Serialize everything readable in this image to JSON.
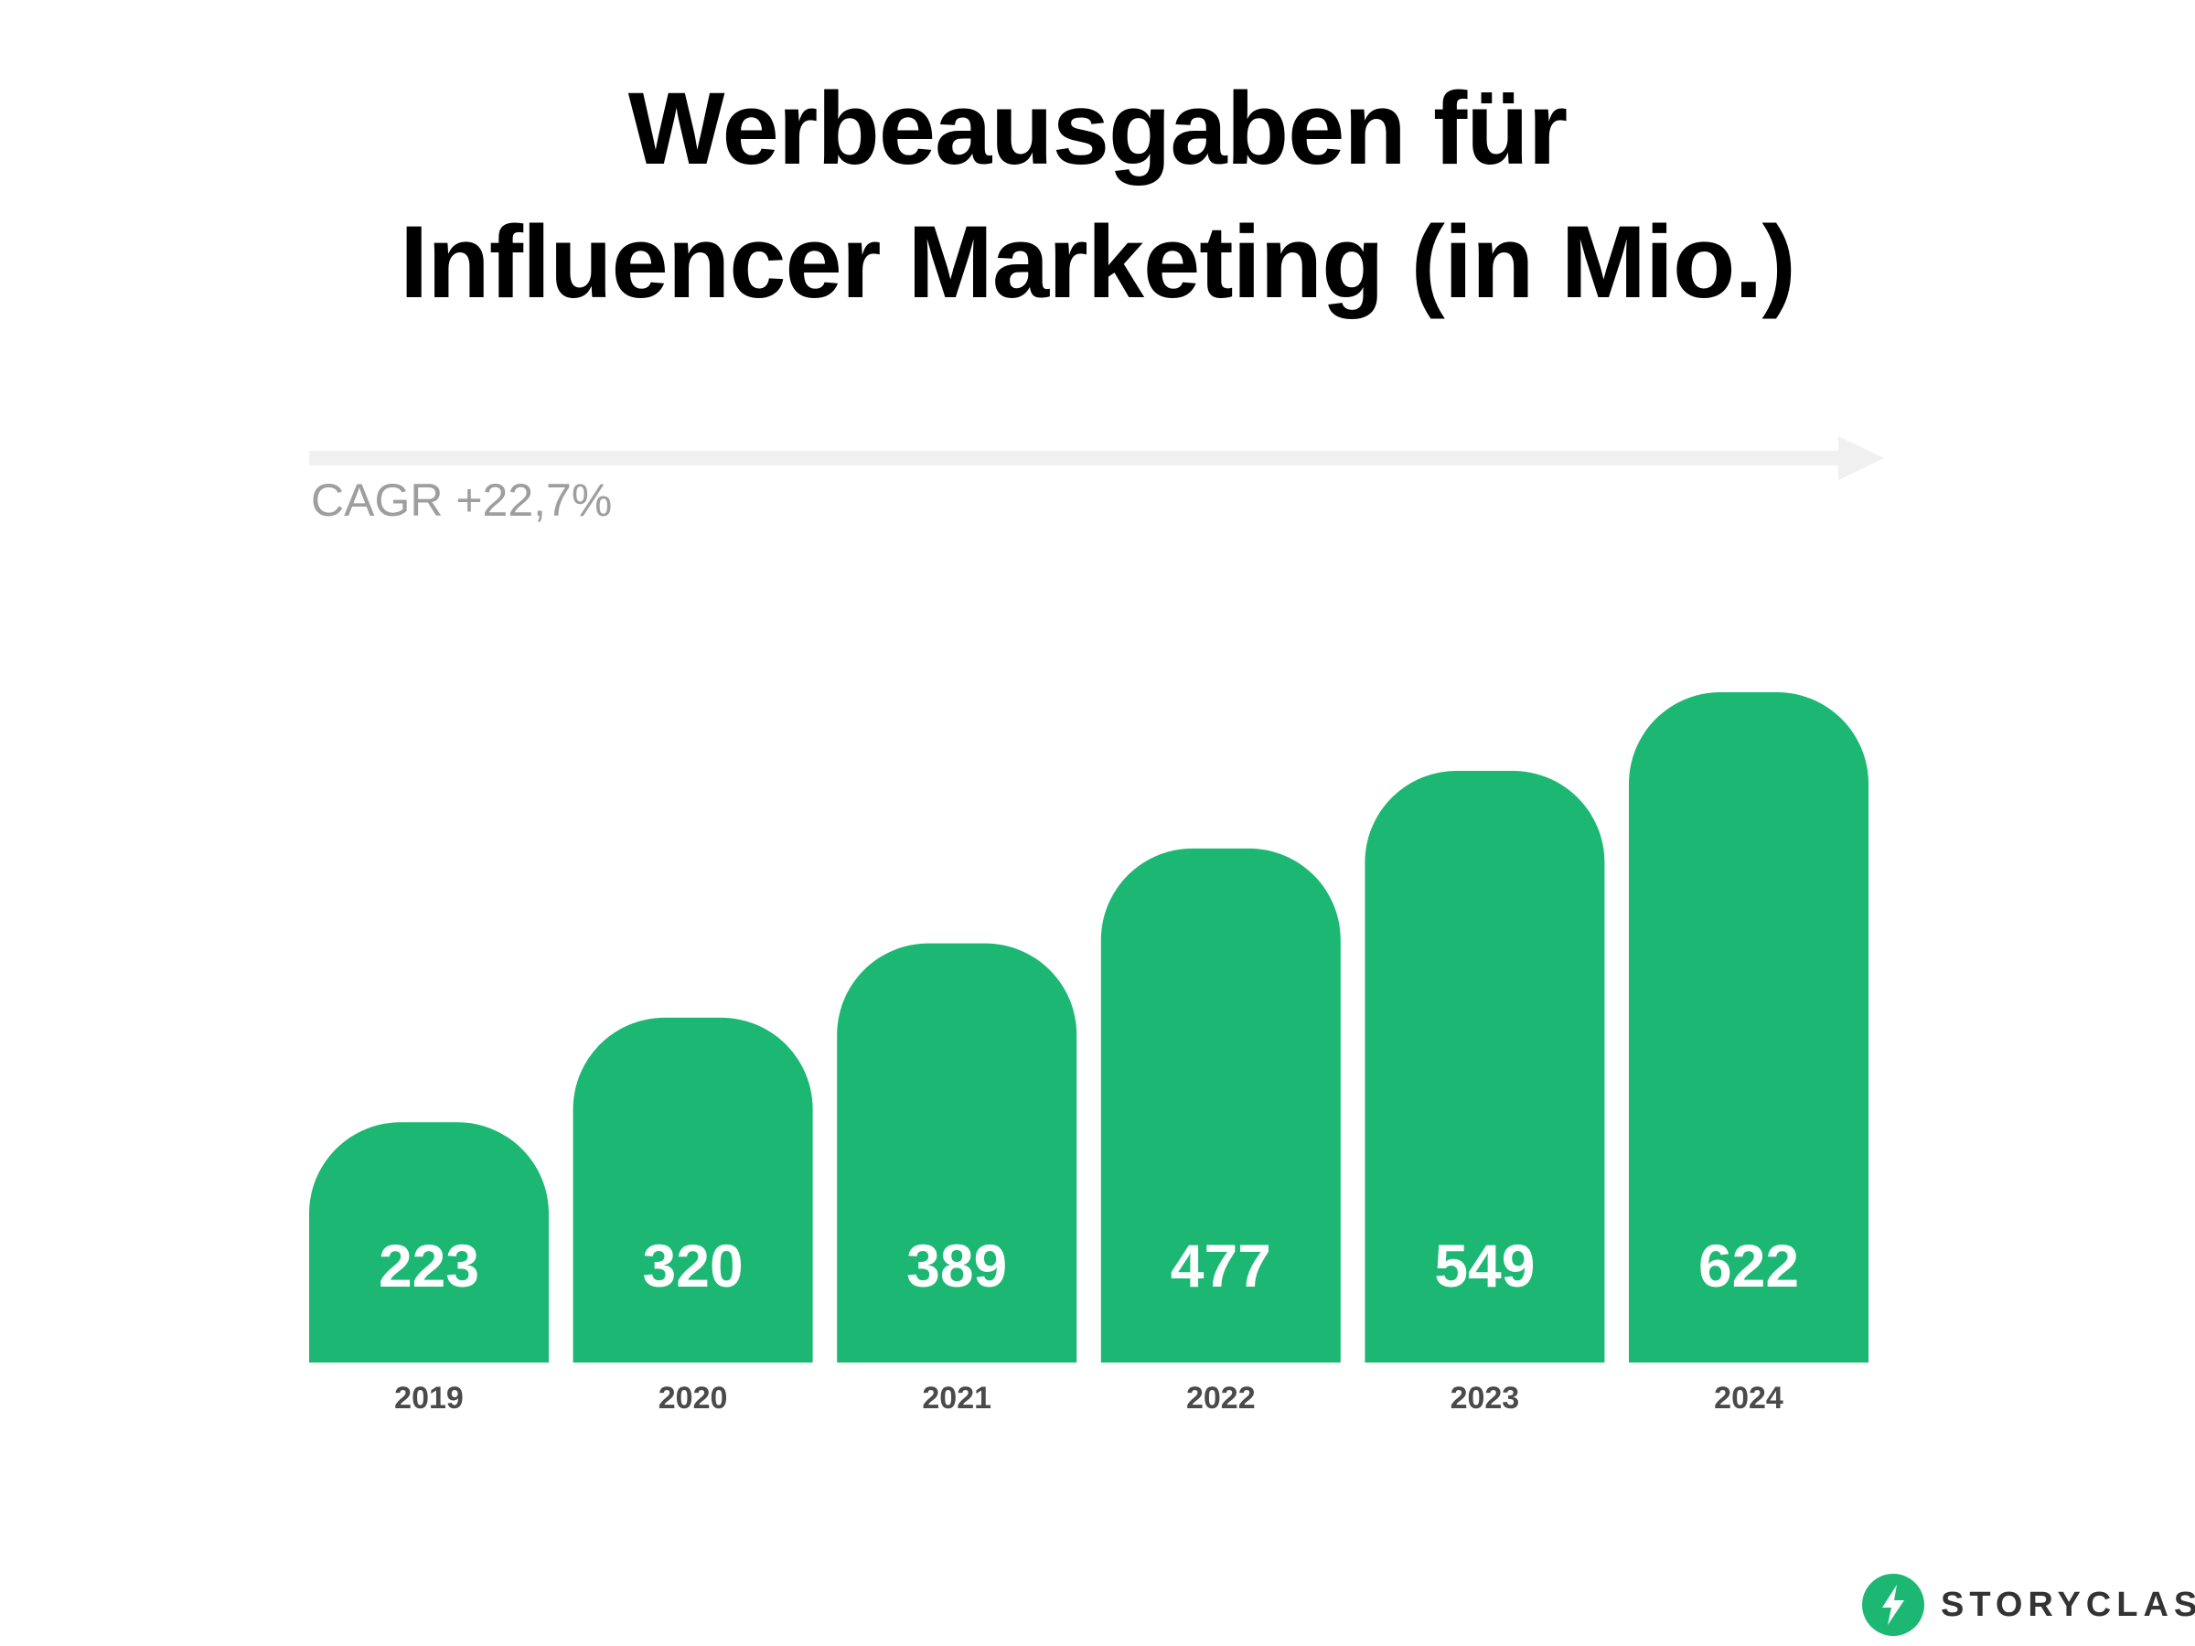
{
  "title_lines": [
    "Werbeausgaben für",
    "Influencer Marketing (in Mio.)"
  ],
  "cagr_label": "CAGR +22,7%",
  "brand": {
    "name": "STORYCLASH",
    "icon": "lightning-bolt-icon"
  },
  "colors": {
    "bar": "#1cb873",
    "bar_label": "#ffffff",
    "category_label": "#4a4a4a",
    "arrow": "#f0f0f0",
    "cagr": "#9e9e9e"
  },
  "chart_data": {
    "type": "bar",
    "categories": [
      "2019",
      "2020",
      "2021",
      "2022",
      "2023",
      "2024"
    ],
    "values": [
      223,
      320,
      389,
      477,
      549,
      622
    ],
    "title": "Werbeausgaben für Influencer Marketing (in Mio.)",
    "annotation": "CAGR +22,7%",
    "grid": false,
    "legend": "none"
  }
}
